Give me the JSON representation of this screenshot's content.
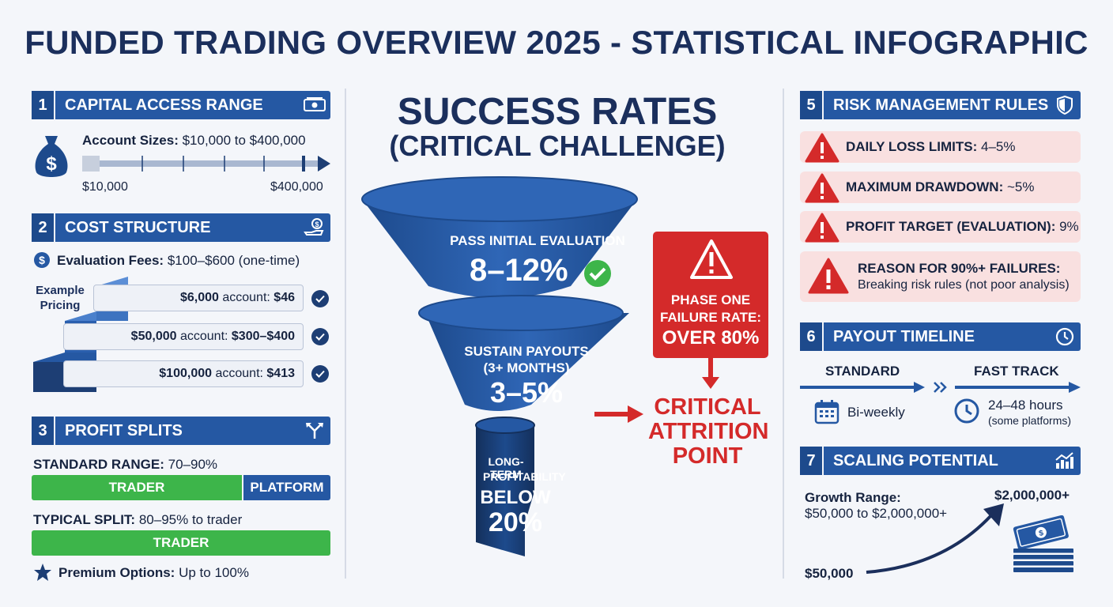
{
  "title": "FUNDED TRADING OVERVIEW 2025 - STATISTICAL INFOGRAPHIC",
  "colors": {
    "primary": "#2558a3",
    "dark": "#1b2f5c",
    "green": "#3db54a",
    "red": "#d42a2a",
    "pink": "#f9e0e0"
  },
  "capital": {
    "num": "1",
    "title": "CAPITAL ACCESS RANGE",
    "icon": "cash-icon",
    "label": "Account Sizes:",
    "value": "$10,000 to $400,000",
    "min": "$10,000",
    "max": "$400,000"
  },
  "cost": {
    "num": "2",
    "title": "COST STRUCTURE",
    "icon": "hand-coin-icon",
    "fees_label": "Evaluation Fees:",
    "fees_value": "$100–$600 (one-time)",
    "example_label": "Example Pricing",
    "items": [
      {
        "account": "$6,000",
        "suffix": "account:",
        "price": "$46"
      },
      {
        "account": "$50,000",
        "suffix": "account:",
        "price": "$300–$400"
      },
      {
        "account": "$100,000",
        "suffix": "account:",
        "price": "$413"
      }
    ]
  },
  "splits": {
    "num": "3",
    "title": "PROFIT SPLITS",
    "icon": "split-arrows-icon",
    "standard_label": "STANDARD RANGE:",
    "standard_value": "70–90%",
    "trader": "TRADER",
    "platform": "PLATFORM",
    "typical_label": "TYPICAL SPLIT:",
    "typical_value": "80–95% to trader",
    "premium_label": "Premium Options:",
    "premium_value": "Up to 100%"
  },
  "success": {
    "title_line1": "SUCCESS RATES",
    "title_line2": "(CRITICAL CHALLENGE)",
    "stage1_label": "PASS INITIAL EVALUATION",
    "stage1_value": "8–12%",
    "stage2_label_1": "SUSTAIN PAYOUTS",
    "stage2_label_2": "(3+ MONTHS)",
    "stage2_value": "3–5%",
    "stage3_label_1": "LONG-TERM",
    "stage3_label_2": "PROFITABILITY",
    "stage3_value_1": "BELOW",
    "stage3_value_2": "20%",
    "alert_line1": "PHASE ONE",
    "alert_line2": "FAILURE RATE:",
    "alert_line3": "OVER 80%",
    "attrition_1": "CRITICAL",
    "attrition_2": "ATTRITION",
    "attrition_3": "POINT"
  },
  "risk": {
    "num": "5",
    "title": "RISK MANAGEMENT RULES",
    "icon": "shield-icon",
    "rules": [
      {
        "label": "DAILY LOSS LIMITS:",
        "value": "4–5%"
      },
      {
        "label": "MAXIMUM DRAWDOWN:",
        "value": "~5%"
      },
      {
        "label": "PROFIT TARGET (EVALUATION):",
        "value": "9%"
      }
    ],
    "reason_label": "REASON FOR 90%+ FAILURES:",
    "reason_value": "Breaking risk rules (not poor analysis)"
  },
  "payout": {
    "num": "6",
    "title": "PAYOUT TIMELINE",
    "icon": "clock-icon",
    "standard": "STANDARD",
    "fast": "FAST TRACK",
    "standard_value": "Bi-weekly",
    "fast_value": "24–48 hours",
    "fast_note": "(some platforms)"
  },
  "scaling": {
    "num": "7",
    "title": "SCALING POTENTIAL",
    "icon": "growth-chart-icon",
    "label": "Growth Range:",
    "value": "$50,000 to $2,000,000+",
    "top": "$2,000,000+",
    "start": "$50,000"
  }
}
